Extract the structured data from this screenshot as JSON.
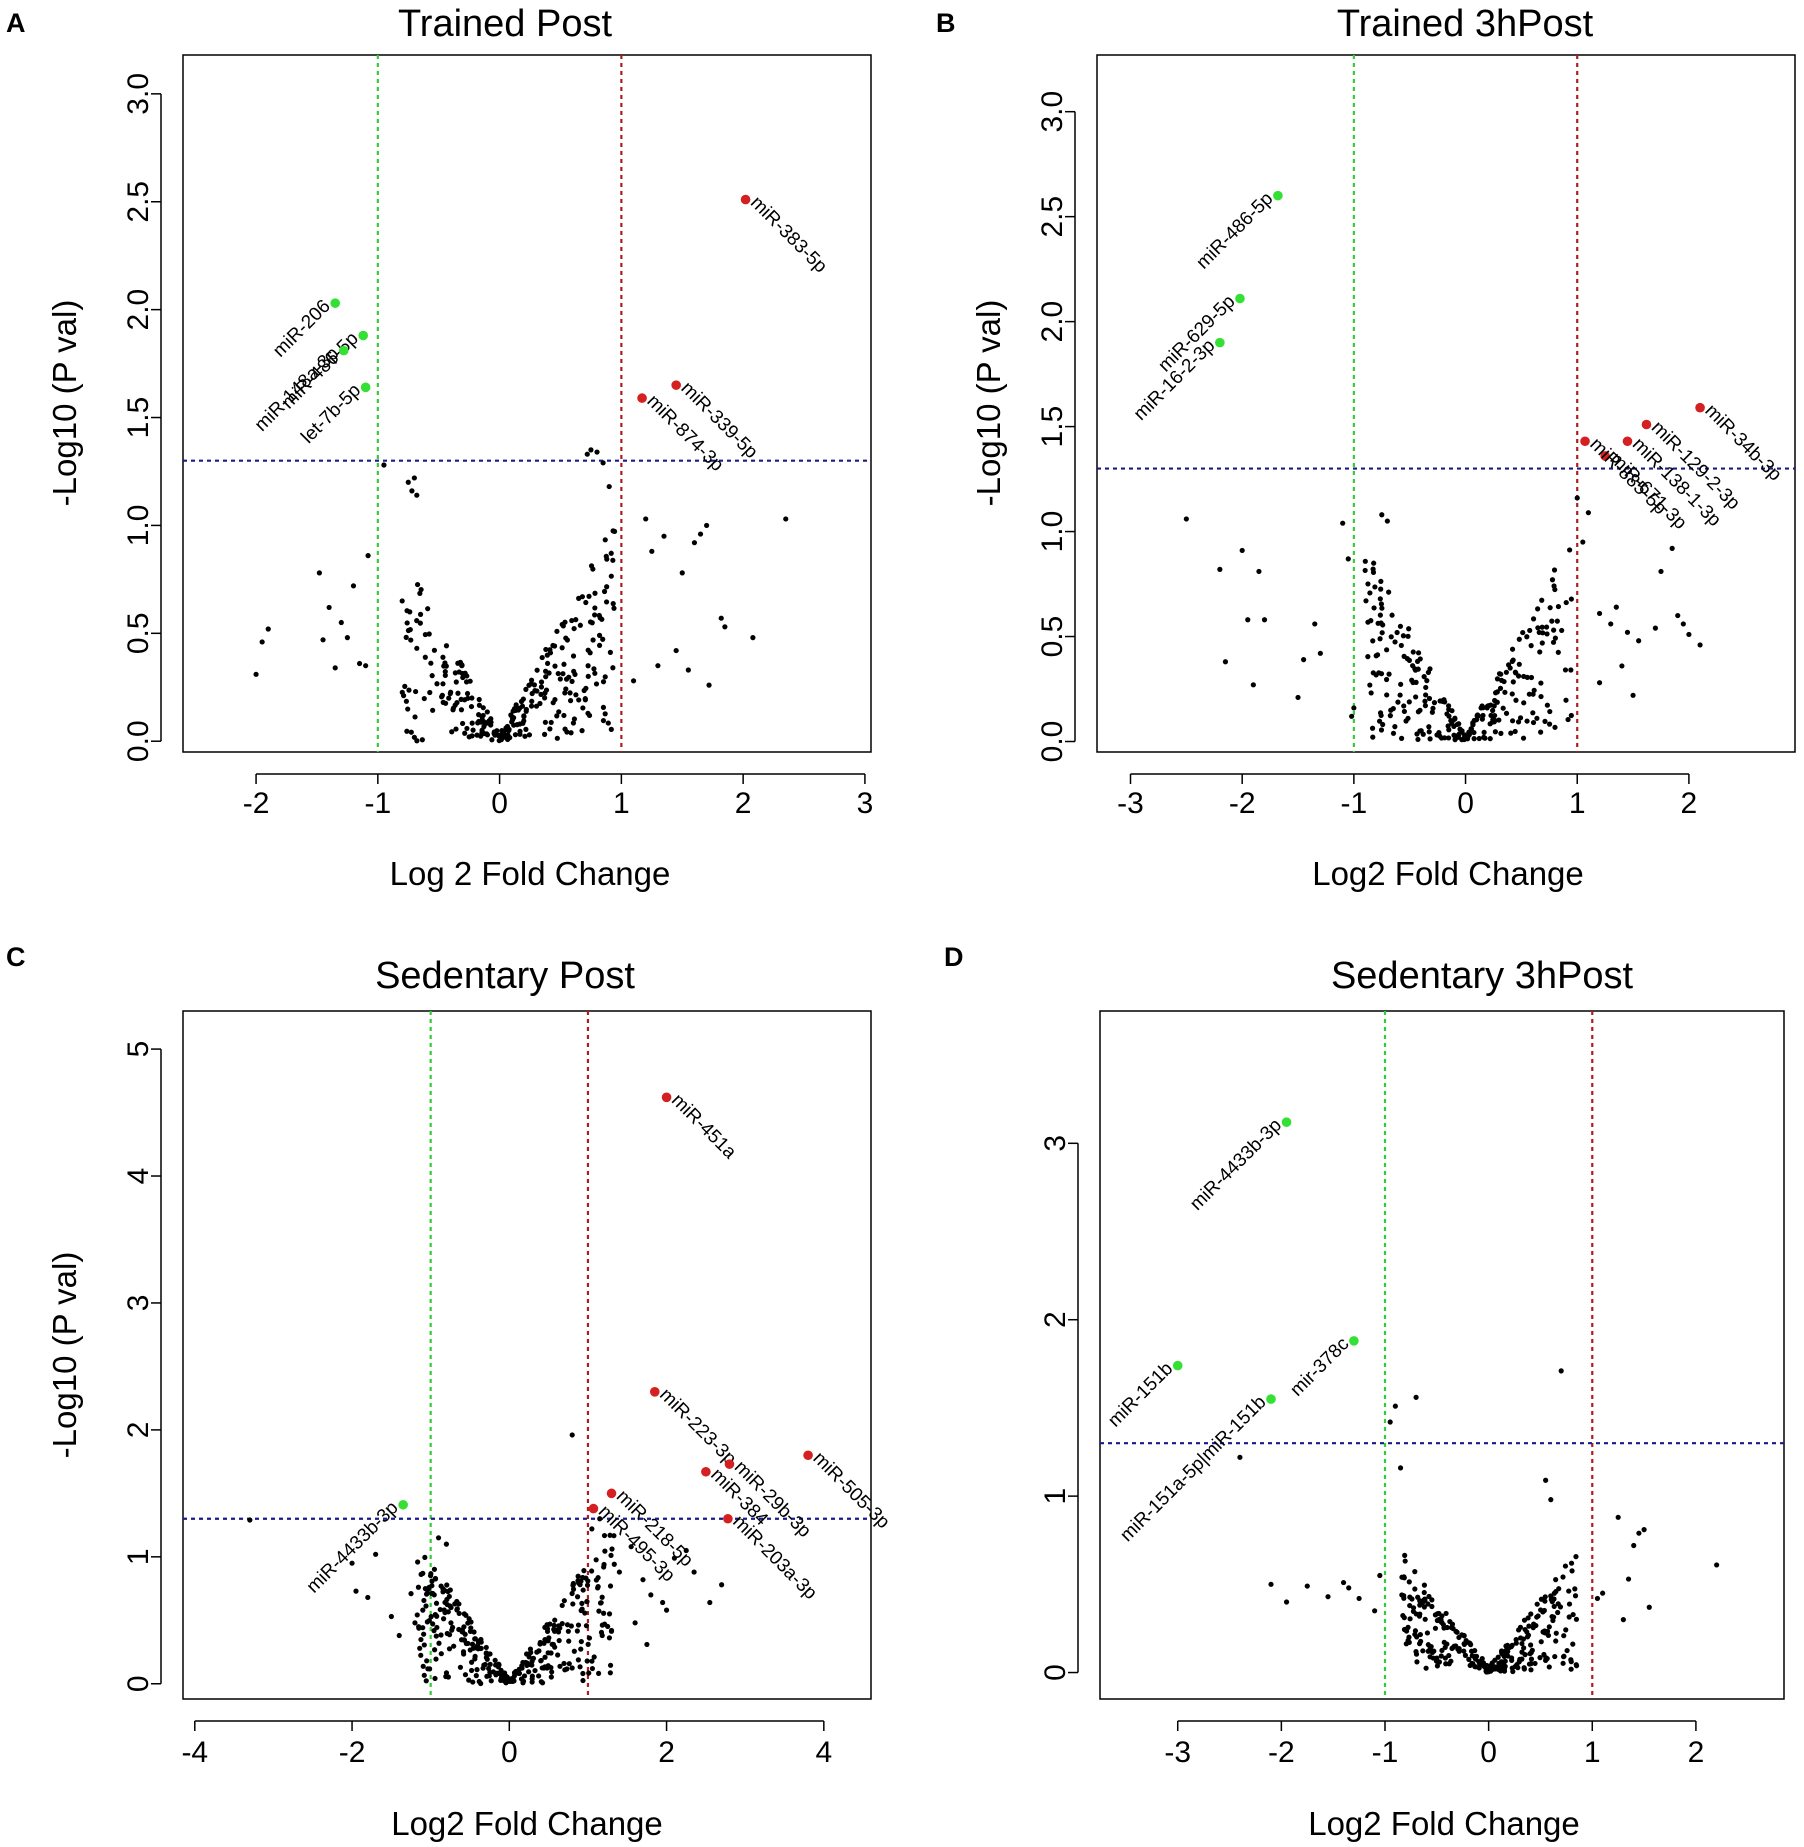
{
  "colors": {
    "up": "#d42020",
    "down": "#33e033",
    "ns": "#000000",
    "pline": "#1a1a8c",
    "upline": "#b01c1c",
    "downline": "#33cc33"
  },
  "chart_data": [
    {
      "panel": "A",
      "type": "scatter",
      "title": "Trained Post",
      "xlabel": "Log 2 Fold Change",
      "ylabel": "-Log10 (P val)",
      "xlim": [
        -2.6,
        3.05
      ],
      "ylim": [
        -0.05,
        3.18
      ],
      "xticks": [
        -2,
        -1,
        0,
        1,
        2,
        3
      ],
      "xtick_labels": [
        "-2",
        "-1",
        "0",
        "1",
        "2",
        "3"
      ],
      "yticks": [
        0,
        0.5,
        1,
        1.5,
        2,
        2.5,
        3
      ],
      "ytick_labels": [
        "0.0",
        "0.5",
        "1.0",
        "1.5",
        "2.0",
        "2.5",
        "3.0"
      ],
      "pval_line": 1.3,
      "fc_lines": [
        -1,
        1
      ],
      "labeled": [
        {
          "label": "miR-383-5p",
          "x": 2.02,
          "y": 2.51,
          "dir": "up"
        },
        {
          "label": "miR-339-5p",
          "x": 1.45,
          "y": 1.65,
          "dir": "up"
        },
        {
          "label": "miR-874-3p",
          "x": 1.17,
          "y": 1.59,
          "dir": "up"
        },
        {
          "label": "miR-206",
          "x": -1.35,
          "y": 2.03,
          "dir": "down"
        },
        {
          "label": "miR-486-5p",
          "x": -1.12,
          "y": 1.88,
          "dir": "down"
        },
        {
          "label": "miR-148a-3p",
          "x": -1.28,
          "y": 1.81,
          "dir": "down"
        },
        {
          "label": "let-7b-5p",
          "x": -1.1,
          "y": 1.64,
          "dir": "down"
        }
      ],
      "extra_ns": [
        [
          -2.0,
          0.31
        ],
        [
          -1.95,
          0.46
        ],
        [
          -1.9,
          0.52
        ],
        [
          -1.48,
          0.78
        ],
        [
          -1.45,
          0.47
        ],
        [
          -1.4,
          0.62
        ],
        [
          -1.35,
          0.34
        ],
        [
          -1.3,
          0.55
        ],
        [
          -1.25,
          0.48
        ],
        [
          -1.2,
          0.72
        ],
        [
          -1.15,
          0.36
        ],
        [
          -1.1,
          0.35
        ],
        [
          -1.08,
          0.86
        ],
        [
          -0.95,
          1.28
        ],
        [
          -0.8,
          0.65
        ],
        [
          -0.75,
          1.2
        ],
        [
          -0.72,
          1.16
        ],
        [
          -0.7,
          1.22
        ],
        [
          -0.68,
          1.14
        ],
        [
          0.75,
          1.35
        ],
        [
          0.72,
          1.33
        ],
        [
          0.8,
          1.34
        ],
        [
          0.85,
          1.29
        ],
        [
          0.9,
          1.18
        ],
        [
          1.2,
          1.03
        ],
        [
          1.25,
          0.88
        ],
        [
          1.35,
          0.95
        ],
        [
          1.5,
          0.78
        ],
        [
          1.6,
          0.92
        ],
        [
          1.65,
          0.96
        ],
        [
          1.7,
          1.0
        ],
        [
          1.82,
          0.57
        ],
        [
          1.85,
          0.53
        ],
        [
          2.08,
          0.48
        ],
        [
          2.35,
          1.03
        ],
        [
          1.72,
          0.26
        ],
        [
          1.45,
          0.42
        ],
        [
          1.55,
          0.33
        ],
        [
          1.3,
          0.35
        ],
        [
          1.1,
          0.28
        ]
      ],
      "ns_count": 300,
      "ns_xmin": -0.8,
      "ns_xmax": 0.95,
      "ns_slope": 1.0,
      "seed": 11
    },
    {
      "panel": "B",
      "type": "scatter",
      "title": "Trained 3hPost",
      "xlabel": "Log2 Fold Change",
      "ylabel": "-Log10 (P val)",
      "xlim": [
        -3.3,
        2.95
      ],
      "ylim": [
        -0.05,
        3.27
      ],
      "xticks": [
        -3,
        -2,
        -1,
        0,
        1,
        2
      ],
      "xtick_labels": [
        "-3",
        "-2",
        "-1",
        "0",
        "1",
        "2"
      ],
      "yticks": [
        0,
        0.5,
        1,
        1.5,
        2,
        2.5,
        3
      ],
      "ytick_labels": [
        "0.0",
        "0.5",
        "1.0",
        "1.5",
        "2.0",
        "2.5",
        "3.0"
      ],
      "pval_line": 1.3,
      "fc_lines": [
        -1,
        1
      ],
      "labeled": [
        {
          "label": "miR-486-5p",
          "x": -1.68,
          "y": 2.6,
          "dir": "down"
        },
        {
          "label": "miR-629-5p",
          "x": -2.02,
          "y": 2.11,
          "dir": "down"
        },
        {
          "label": "miR-16-2-3p",
          "x": -2.2,
          "y": 1.9,
          "dir": "down"
        },
        {
          "label": "miR-34b-3p",
          "x": 2.1,
          "y": 1.59,
          "dir": "up"
        },
        {
          "label": "miR-129-2-3p",
          "x": 1.62,
          "y": 1.51,
          "dir": "up"
        },
        {
          "label": "miR-138-1-3p",
          "x": 1.45,
          "y": 1.43,
          "dir": "up"
        },
        {
          "label": "miR-671-3p",
          "x": 1.25,
          "y": 1.36,
          "dir": "up"
        },
        {
          "label": "miR-885-5p",
          "x": 1.07,
          "y": 1.43,
          "dir": "up"
        }
      ],
      "extra_ns": [
        [
          -2.5,
          1.06
        ],
        [
          -2.2,
          0.82
        ],
        [
          -2.15,
          0.38
        ],
        [
          -2.0,
          0.91
        ],
        [
          -1.95,
          0.58
        ],
        [
          -1.9,
          0.27
        ],
        [
          -1.85,
          0.81
        ],
        [
          -1.8,
          0.58
        ],
        [
          -1.5,
          0.21
        ],
        [
          -1.45,
          0.39
        ],
        [
          -1.35,
          0.56
        ],
        [
          -1.3,
          0.42
        ],
        [
          -1.1,
          1.04
        ],
        [
          -1.05,
          0.87
        ],
        [
          -1.02,
          0.12
        ],
        [
          -1.0,
          0.16
        ],
        [
          -0.75,
          1.08
        ],
        [
          -0.7,
          1.05
        ],
        [
          1.0,
          1.16
        ],
        [
          1.05,
          0.95
        ],
        [
          1.1,
          1.09
        ],
        [
          1.2,
          0.61
        ],
        [
          1.3,
          0.56
        ],
        [
          1.35,
          0.64
        ],
        [
          1.45,
          0.52
        ],
        [
          1.55,
          0.48
        ],
        [
          1.7,
          0.54
        ],
        [
          1.75,
          0.81
        ],
        [
          1.85,
          0.92
        ],
        [
          1.9,
          0.6
        ],
        [
          1.95,
          0.56
        ],
        [
          2.0,
          0.51
        ],
        [
          2.1,
          0.46
        ],
        [
          1.5,
          0.22
        ],
        [
          1.2,
          0.28
        ],
        [
          1.4,
          0.36
        ]
      ],
      "ns_count": 280,
      "ns_xmin": -0.9,
      "ns_xmax": 0.95,
      "ns_slope": 0.95,
      "seed": 23
    },
    {
      "panel": "C",
      "type": "scatter",
      "title": "Sedentary Post",
      "xlabel": "Log2 Fold Change",
      "ylabel": "-Log10 (P val)",
      "xlim": [
        -4.15,
        4.6
      ],
      "ylim": [
        -0.12,
        5.3
      ],
      "xticks": [
        -4,
        -2,
        0,
        2,
        4
      ],
      "xtick_labels": [
        "-4",
        "-2",
        "0",
        "2",
        "4"
      ],
      "yticks": [
        0,
        1,
        2,
        3,
        4,
        5
      ],
      "ytick_labels": [
        "0",
        "1",
        "2",
        "3",
        "4",
        "5"
      ],
      "pval_line": 1.3,
      "fc_lines": [
        -1,
        1
      ],
      "labeled": [
        {
          "label": "miR-451a",
          "x": 2.0,
          "y": 4.62,
          "dir": "up"
        },
        {
          "label": "miR-223-3p",
          "x": 1.85,
          "y": 2.3,
          "dir": "up"
        },
        {
          "label": "miR-505-3p",
          "x": 3.8,
          "y": 1.8,
          "dir": "up"
        },
        {
          "label": "miR-29b-3p",
          "x": 2.8,
          "y": 1.73,
          "dir": "up"
        },
        {
          "label": "miR-384",
          "x": 2.5,
          "y": 1.67,
          "dir": "up"
        },
        {
          "label": "miR-218-5p",
          "x": 1.3,
          "y": 1.5,
          "dir": "up"
        },
        {
          "label": "miR-495-3p",
          "x": 1.07,
          "y": 1.38,
          "dir": "up"
        },
        {
          "label": "miR-203a-3p",
          "x": 2.78,
          "y": 1.3,
          "dir": "up"
        },
        {
          "label": "miR-4433b-3p",
          "x": -1.35,
          "y": 1.41,
          "dir": "down"
        }
      ],
      "extra_ns": [
        [
          -3.3,
          1.29
        ],
        [
          -2.0,
          0.95
        ],
        [
          -1.95,
          0.73
        ],
        [
          -1.8,
          0.68
        ],
        [
          -1.7,
          1.02
        ],
        [
          -1.5,
          0.53
        ],
        [
          -1.4,
          0.38
        ],
        [
          -1.25,
          0.71
        ],
        [
          -1.2,
          0.48
        ],
        [
          -1.1,
          0.58
        ],
        [
          -0.9,
          1.15
        ],
        [
          -0.8,
          1.1
        ],
        [
          0.8,
          1.96
        ],
        [
          1.05,
          1.22
        ],
        [
          1.15,
          1.3
        ],
        [
          1.4,
          0.88
        ],
        [
          1.55,
          1.08
        ],
        [
          1.7,
          0.82
        ],
        [
          1.8,
          0.7
        ],
        [
          1.95,
          0.64
        ],
        [
          2.0,
          0.58
        ],
        [
          2.1,
          0.99
        ],
        [
          2.25,
          1.05
        ],
        [
          2.35,
          0.88
        ],
        [
          2.55,
          0.64
        ],
        [
          2.7,
          0.78
        ],
        [
          1.3,
          0.42
        ],
        [
          1.6,
          0.48
        ],
        [
          1.75,
          0.31
        ],
        [
          1.2,
          0.92
        ]
      ],
      "ns_count": 340,
      "ns_xmin": -1.2,
      "ns_xmax": 1.35,
      "ns_slope": 0.9,
      "seed": 37
    },
    {
      "panel": "D",
      "type": "scatter",
      "title": "Sedentary 3hPost",
      "xlabel": "Log2 Fold Change",
      "ylabel": "",
      "xlim": [
        -3.75,
        2.85
      ],
      "ylim": [
        -0.15,
        3.75
      ],
      "xticks": [
        -3,
        -2,
        -1,
        0,
        1,
        2
      ],
      "xtick_labels": [
        "-3",
        "-2",
        "-1",
        "0",
        "1",
        "2"
      ],
      "yticks": [
        0,
        1,
        2,
        3
      ],
      "ytick_labels": [
        "0",
        "1",
        "2",
        "3"
      ],
      "pval_line": 1.3,
      "fc_lines": [
        -1,
        1
      ],
      "labeled": [
        {
          "label": "miR-4433b-3p",
          "x": -1.95,
          "y": 3.12,
          "dir": "down"
        },
        {
          "label": "mir-378c",
          "x": -1.3,
          "y": 1.88,
          "dir": "down"
        },
        {
          "label": "miR-151b",
          "x": -3.0,
          "y": 1.74,
          "dir": "down"
        },
        {
          "label": "miR-151a-5p|miR-151b",
          "x": -2.1,
          "y": 1.55,
          "dir": "down"
        }
      ],
      "extra_ns": [
        [
          -2.4,
          1.22
        ],
        [
          -2.1,
          0.5
        ],
        [
          -1.95,
          0.4
        ],
        [
          -1.75,
          0.49
        ],
        [
          -1.55,
          0.43
        ],
        [
          -1.4,
          0.51
        ],
        [
          -1.35,
          0.48
        ],
        [
          -1.25,
          0.42
        ],
        [
          -1.1,
          0.35
        ],
        [
          -1.05,
          0.55
        ],
        [
          -0.95,
          1.42
        ],
        [
          -0.9,
          1.51
        ],
        [
          -0.85,
          1.16
        ],
        [
          -0.7,
          1.56
        ],
        [
          0.7,
          1.71
        ],
        [
          1.05,
          0.42
        ],
        [
          1.1,
          0.45
        ],
        [
          1.25,
          0.88
        ],
        [
          1.3,
          0.3
        ],
        [
          1.4,
          0.72
        ],
        [
          1.45,
          0.79
        ],
        [
          1.5,
          0.81
        ],
        [
          1.55,
          0.37
        ],
        [
          1.35,
          0.53
        ],
        [
          2.2,
          0.61
        ],
        [
          0.55,
          1.09
        ],
        [
          0.6,
          0.98
        ],
        [
          0.8,
          0.62
        ]
      ],
      "ns_count": 300,
      "ns_xmin": -0.85,
      "ns_xmax": 0.85,
      "ns_slope": 0.75,
      "seed": 53
    }
  ]
}
